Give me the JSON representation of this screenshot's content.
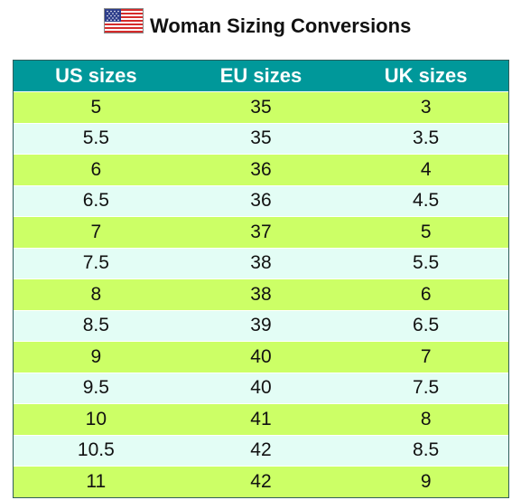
{
  "header": {
    "title": "Woman Sizing Conversions",
    "flag_icon": "us-flag-icon"
  },
  "colors": {
    "header_bg": "#00989a",
    "row_odd": "#ccff66",
    "row_even": "#e3fdf5"
  },
  "table": {
    "columns": [
      "US sizes",
      "EU sizes",
      "UK sizes"
    ],
    "rows": [
      [
        "5",
        "35",
        "3"
      ],
      [
        "5.5",
        "35",
        "3.5"
      ],
      [
        "6",
        "36",
        "4"
      ],
      [
        "6.5",
        "36",
        "4.5"
      ],
      [
        "7",
        "37",
        "5"
      ],
      [
        "7.5",
        "38",
        "5.5"
      ],
      [
        "8",
        "38",
        "6"
      ],
      [
        "8.5",
        "39",
        "6.5"
      ],
      [
        "9",
        "40",
        "7"
      ],
      [
        "9.5",
        "40",
        "7.5"
      ],
      [
        "10",
        "41",
        "8"
      ],
      [
        "10.5",
        "42",
        "8.5"
      ],
      [
        "11",
        "42",
        "9"
      ]
    ]
  }
}
